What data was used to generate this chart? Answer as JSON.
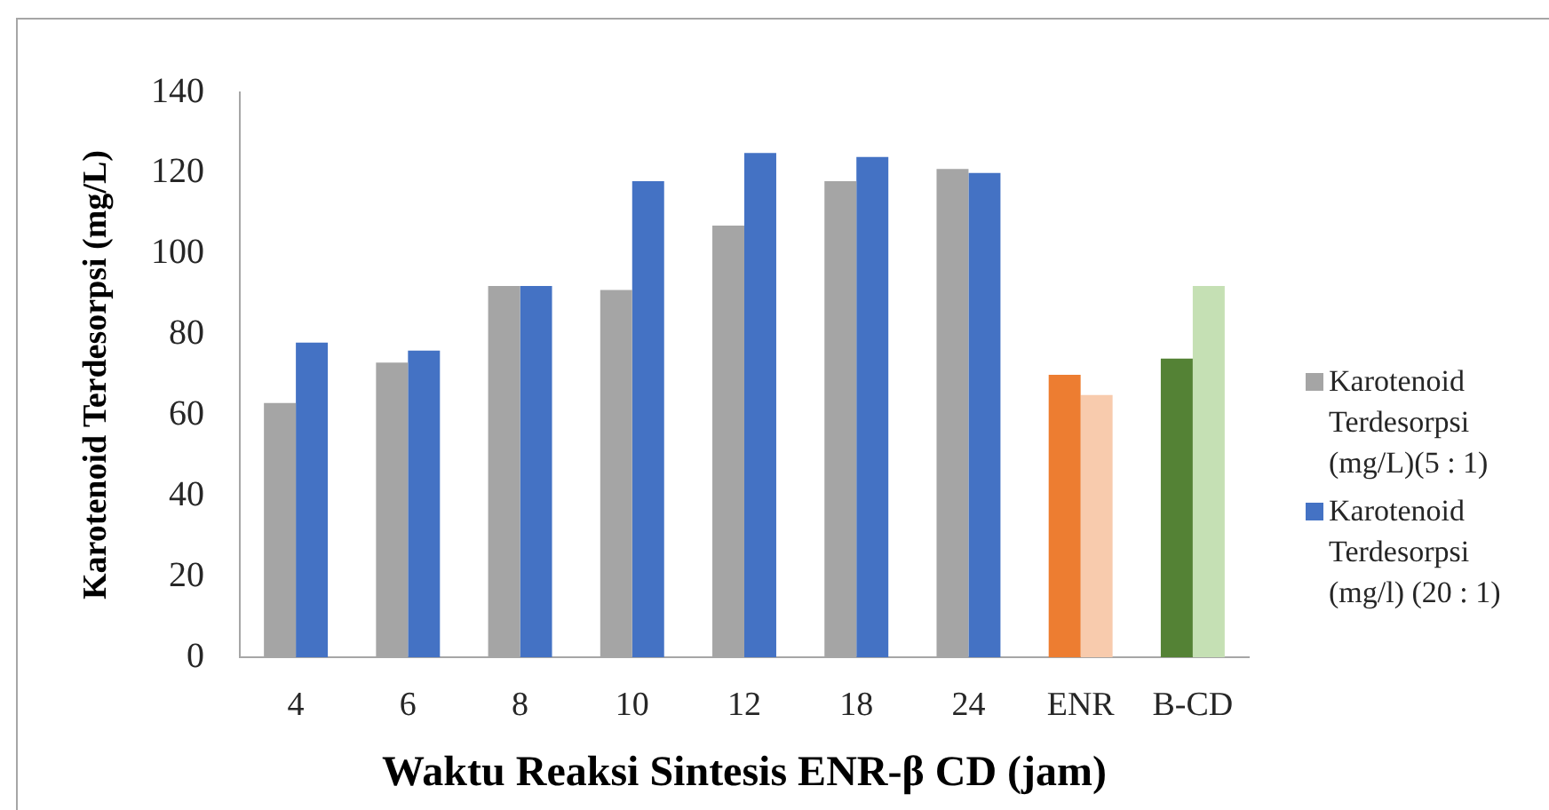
{
  "chart_data": {
    "type": "bar",
    "categories": [
      "4",
      "6",
      "8",
      "10",
      "12",
      "18",
      "24",
      "ENR",
      "B-CD"
    ],
    "series": [
      {
        "name": "Karotenoid Terdesorpsi (mg/L)(5 : 1)",
        "color": "#a5a5a5",
        "colors": [
          "#a5a5a5",
          "#a5a5a5",
          "#a5a5a5",
          "#a5a5a5",
          "#a5a5a5",
          "#a5a5a5",
          "#a5a5a5",
          "#ed7d31",
          "#548235"
        ],
        "values": [
          63,
          73,
          92,
          91,
          107,
          118,
          121,
          70,
          74
        ]
      },
      {
        "name": "Karotenoid Terdesorpsi (mg/l) (20 : 1)",
        "color": "#4472c4",
        "colors": [
          "#4472c4",
          "#4472c4",
          "#4472c4",
          "#4472c4",
          "#4472c4",
          "#4472c4",
          "#4472c4",
          "#f8cbad",
          "#c5e0b4"
        ],
        "values": [
          78,
          76,
          92,
          118,
          125,
          124,
          120,
          65,
          92
        ]
      }
    ],
    "xlabel": "Waktu Reaksi Sintesis ENR-β CD (jam)",
    "ylabel": "Karotenoid Terdesorpsi (mg/L)",
    "ylim": [
      0,
      140
    ],
    "yticks": [
      0,
      20,
      40,
      60,
      80,
      100,
      120,
      140
    ],
    "grid": false,
    "legend": "right"
  }
}
